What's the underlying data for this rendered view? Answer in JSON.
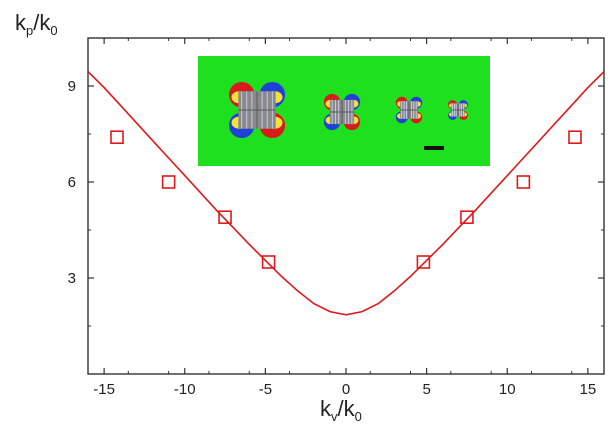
{
  "chart_data": {
    "type": "scatter",
    "title": "",
    "xlabel": {
      "main1": "k",
      "sub1": "v",
      "sep": "/k",
      "sub2": "0"
    },
    "ylabel": {
      "main1": "k",
      "sub1": "p",
      "sep": "/k",
      "sub2": "0"
    },
    "xlim": [
      -16,
      16
    ],
    "ylim": [
      0,
      10.5
    ],
    "xticks": [
      -15,
      -10,
      -5,
      0,
      5,
      10,
      15
    ],
    "xtick_labels": [
      "-15",
      "-10",
      "-5",
      "0",
      "5",
      "10",
      "15"
    ],
    "yticks": [
      3,
      6,
      9
    ],
    "ytick_labels": [
      "3",
      "6",
      "9"
    ],
    "grid": false,
    "series": [
      {
        "kind": "line",
        "color": "#e0191b",
        "x": [
          -16,
          -15,
          -14,
          -13,
          -12,
          -11,
          -10,
          -9,
          -8,
          -7,
          -6,
          -5,
          -4,
          -3,
          -2,
          -1,
          0,
          1,
          2,
          3,
          4,
          5,
          6,
          7,
          8,
          9,
          10,
          11,
          12,
          13,
          14,
          15,
          16
        ],
        "y": [
          9.45,
          8.95,
          8.4,
          7.85,
          7.3,
          6.75,
          6.2,
          5.65,
          5.1,
          4.58,
          4.05,
          3.55,
          3.05,
          2.6,
          2.2,
          1.95,
          1.85,
          1.95,
          2.2,
          2.6,
          3.05,
          3.55,
          4.05,
          4.58,
          5.1,
          5.65,
          6.2,
          6.75,
          7.3,
          7.85,
          8.4,
          8.95,
          9.45
        ]
      },
      {
        "kind": "scatter",
        "marker": "open-square",
        "color": "#e0191b",
        "x": [
          -14.2,
          -11,
          -7.5,
          -4.8,
          4.8,
          7.5,
          11,
          14.2
        ],
        "y": [
          7.4,
          6.0,
          4.9,
          3.5,
          3.5,
          4.9,
          6.0,
          7.4
        ]
      }
    ],
    "inset": {
      "description_kind": "field-map",
      "background": "#1ee01e",
      "scale_bar_color": "#111111"
    }
  }
}
